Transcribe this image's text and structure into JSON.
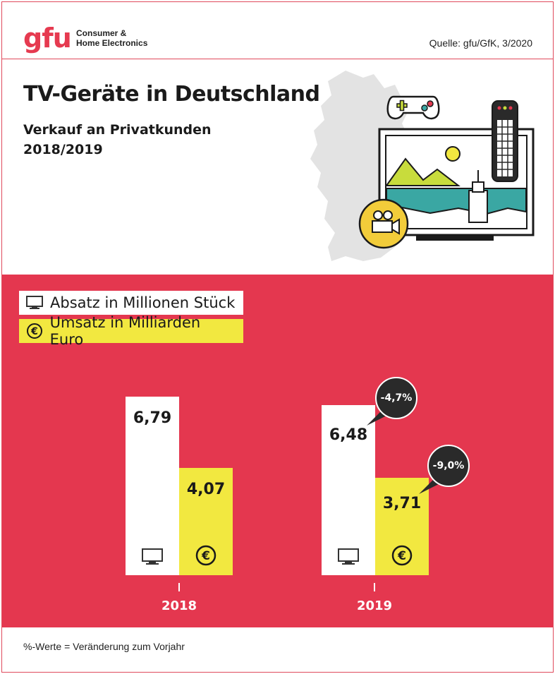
{
  "header": {
    "logo_text": "gfu",
    "logo_subtitle_line1": "Consumer &",
    "logo_subtitle_line2": "Home Electronics",
    "source": "Quelle: gfu/GfK, 3/2020"
  },
  "title": "TV-Geräte in Deutschland",
  "subtitle_line1": "Verkauf an Privatkunden",
  "subtitle_line2": "2018/2019",
  "legend": {
    "units": "Absatz in Millionen Stück",
    "revenue": "Umsatz in Milliarden Euro"
  },
  "footnote": "%-Werte = Veränderung zum Vorjahr",
  "icons": [
    "tv-icon",
    "euro-icon",
    "gamepad-icon",
    "remote-control-icon",
    "video-camera-icon",
    "germany-map-icon"
  ],
  "colors": {
    "brand_red": "#e4374f",
    "bar_white": "#ffffff",
    "bar_yellow": "#f2e840",
    "bubble_dark": "#2a2a2a"
  },
  "chart_data": {
    "type": "bar",
    "categories": [
      "2018",
      "2019"
    ],
    "series": [
      {
        "name": "Absatz in Millionen Stück",
        "values": [
          6.79,
          6.48
        ],
        "labels": [
          "6,79",
          "6,48"
        ]
      },
      {
        "name": "Umsatz in Milliarden Euro",
        "values": [
          4.07,
          3.71
        ],
        "labels": [
          "4,07",
          "3,71"
        ]
      }
    ],
    "changes": {
      "units_2019": "-4,7%",
      "revenue_2019": "-9,0%"
    },
    "ylim": [
      0,
      7.2
    ],
    "grid": false
  }
}
